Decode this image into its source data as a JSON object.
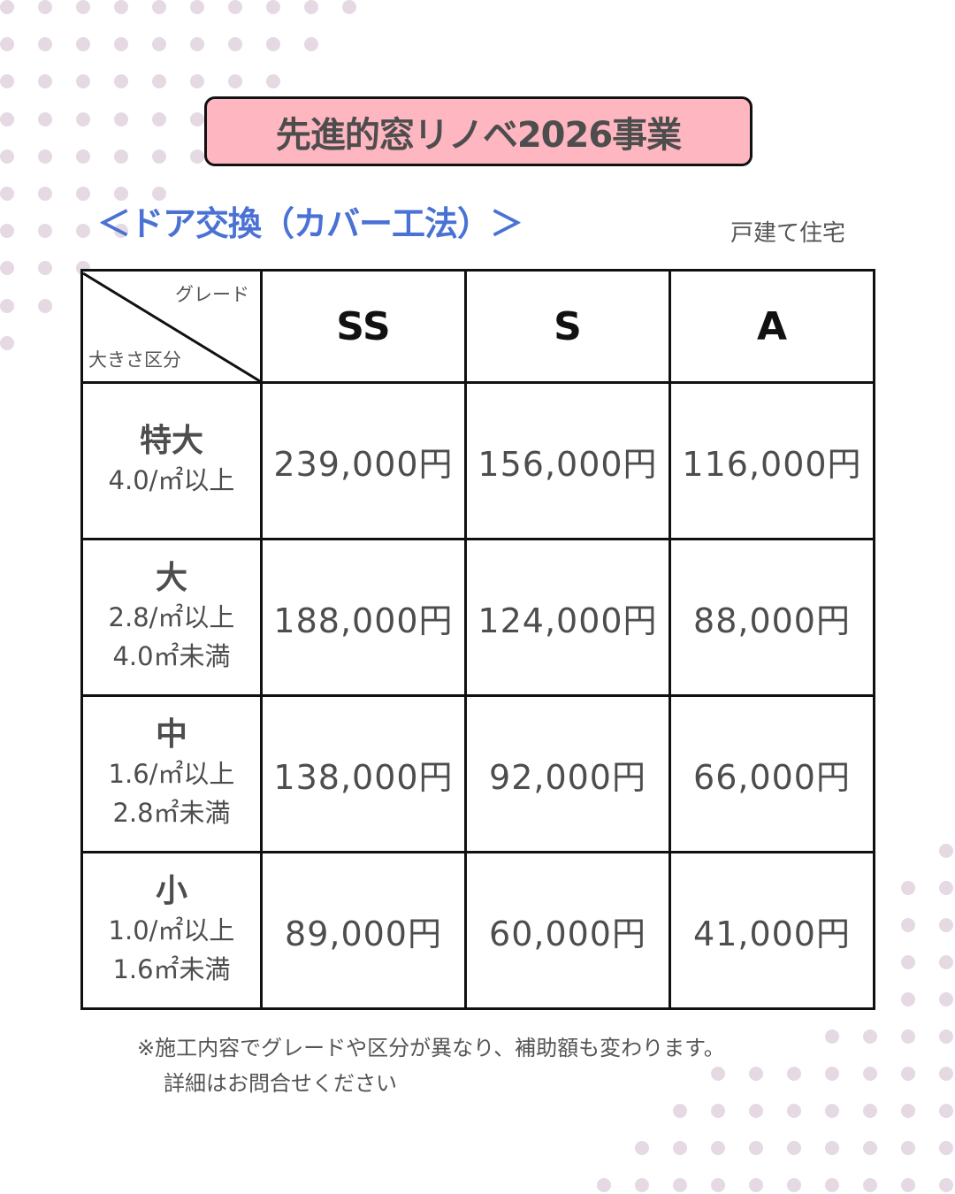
{
  "title": "先進的窓リノベ2026事業",
  "subtitle": "＜ドア交換（カバー工法）＞",
  "housing_type": "戸建て住宅",
  "table": {
    "corner_top": "グレード",
    "corner_bottom": "大きさ区分",
    "grades": [
      "SS",
      "S",
      "A"
    ],
    "rows": [
      {
        "size": "特大",
        "range": [
          "4.0/㎡以上"
        ],
        "prices": [
          "239,000円",
          "156,000円",
          "116,000円"
        ]
      },
      {
        "size": "大",
        "range": [
          "2.8/㎡以上",
          "4.0㎡未満"
        ],
        "prices": [
          "188,000円",
          "124,000円",
          "88,000円"
        ]
      },
      {
        "size": "中",
        "range": [
          "1.6/㎡以上",
          "2.8㎡未満"
        ],
        "prices": [
          "138,000円",
          "92,000円",
          "66,000円"
        ]
      },
      {
        "size": "小",
        "range": [
          "1.0/㎡以上",
          "1.6㎡未満"
        ],
        "prices": [
          "89,000円",
          "60,000円",
          "41,000円"
        ]
      }
    ]
  },
  "note": {
    "line1": "※施工内容でグレードや区分が異なり、補助額も変わります。",
    "line2": "詳細はお問合せください"
  },
  "colors": {
    "title_bg": "#feb6c0",
    "subtitle": "#4a72d4",
    "dots": "#e5d9e3"
  }
}
